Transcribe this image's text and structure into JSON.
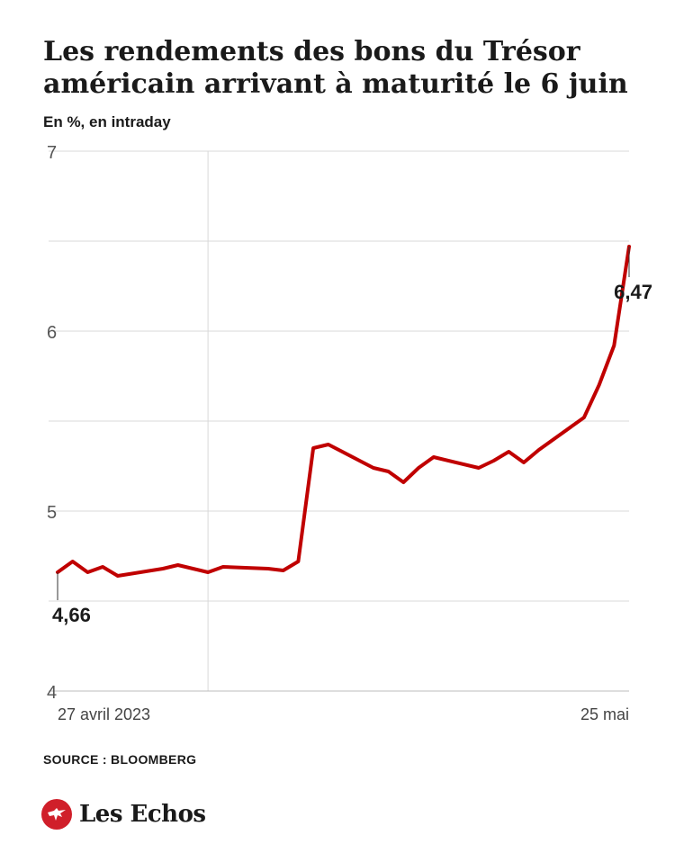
{
  "header": {
    "title_line1": "Les rendements des bons du Trésor",
    "title_line2": "américain arrivant à maturité le 6 juin",
    "subtitle": "En %, en intraday"
  },
  "footer": {
    "source": "SOURCE : BLOOMBERG",
    "brand": "Les Echos"
  },
  "colors": {
    "line": "#c00000",
    "grid": "#d9d9d9",
    "text": "#1a1a1a",
    "brand_red": "#d01f2a"
  },
  "chart_data": {
    "type": "line",
    "title": "Les rendements des bons du Trésor américain arrivant à maturité le 6 juin",
    "subtitle": "En %, en intraday",
    "xlabel": "",
    "ylabel": "",
    "ylim": [
      4,
      7
    ],
    "yticks": [
      4,
      5,
      6,
      7
    ],
    "ytick_labels": [
      "4",
      "5",
      "6",
      "7"
    ],
    "xtick_labels": [
      "27 avril 2023",
      "25 mai"
    ],
    "xlim": [
      "2023-04-17",
      "2023-05-25"
    ],
    "grid": true,
    "legend": "none",
    "annotations": [
      {
        "label": "4,66",
        "x": "2023-04-17",
        "y": 4.66
      },
      {
        "label": "6,47",
        "x": "2023-05-25",
        "y": 6.47
      }
    ],
    "series": [
      {
        "x": [
          "2023-04-17",
          "2023-04-18",
          "2023-04-19",
          "2023-04-20",
          "2023-04-21",
          "2023-04-24",
          "2023-04-25",
          "2023-04-26",
          "2023-04-27",
          "2023-04-28",
          "2023-05-01",
          "2023-05-02",
          "2023-05-03",
          "2023-05-04",
          "2023-05-05",
          "2023-05-08",
          "2023-05-09",
          "2023-05-10",
          "2023-05-11",
          "2023-05-12",
          "2023-05-15",
          "2023-05-16",
          "2023-05-17",
          "2023-05-18",
          "2023-05-19",
          "2023-05-22",
          "2023-05-23",
          "2023-05-24",
          "2023-05-25"
        ],
        "values": [
          4.66,
          4.72,
          4.66,
          4.69,
          4.64,
          4.68,
          4.7,
          4.68,
          4.66,
          4.69,
          4.68,
          4.67,
          4.72,
          5.35,
          5.37,
          5.24,
          5.22,
          5.16,
          5.24,
          5.3,
          5.24,
          5.28,
          5.33,
          5.27,
          5.34,
          5.52,
          5.7,
          5.92,
          6.47
        ]
      }
    ]
  }
}
